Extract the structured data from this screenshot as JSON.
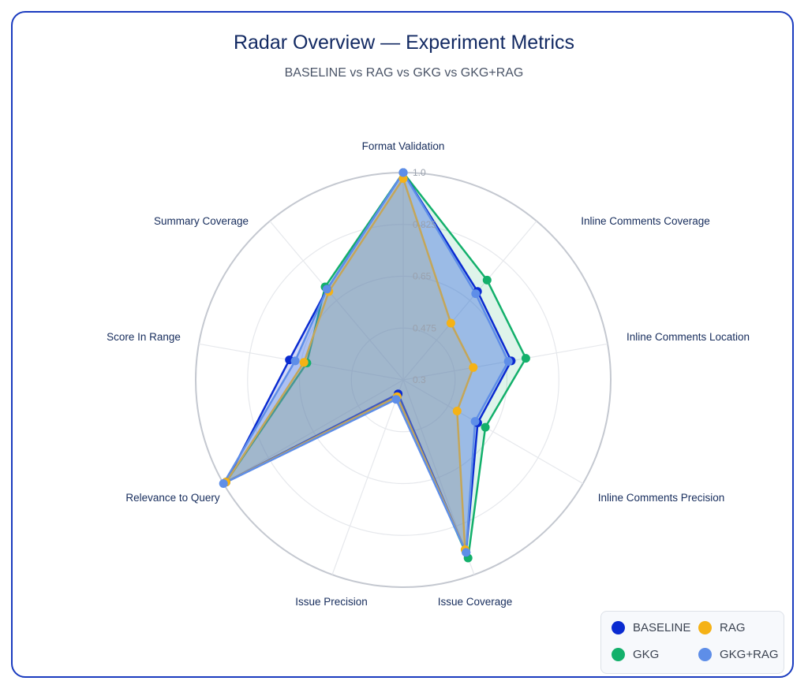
{
  "header": {
    "title": "Radar Overview — Experiment Metrics",
    "subtitle": "BASELINE vs RAG vs GKG vs GKG+RAG"
  },
  "chart_data": {
    "type": "radar",
    "title": "Radar Overview — Experiment Metrics",
    "subtitle": "BASELINE vs RAG vs GKG vs GKG+RAG",
    "categories": [
      "Format Validation",
      "Inline Comments Coverage",
      "Inline Comments Location",
      "Inline Comments Precision",
      "Issue Coverage",
      "Issue Precision",
      "Relevance to Query",
      "Score In Range",
      "Summary Coverage"
    ],
    "radial_range": [
      0.3,
      1.0
    ],
    "radial_ticks": [
      "0.3",
      "0.475",
      "0.65",
      "0.825",
      "1.0"
    ],
    "grid": true,
    "legend_position": "bottom-right",
    "series": [
      {
        "name": "BASELINE",
        "color": "#0a2bd1",
        "values": [
          1.0,
          0.69,
          0.67,
          0.59,
          0.92,
          0.35,
          0.99,
          0.69,
          0.7
        ]
      },
      {
        "name": "RAG",
        "color": "#f5b216",
        "values": [
          0.98,
          0.55,
          0.54,
          0.51,
          0.91,
          0.36,
          0.99,
          0.64,
          0.69
        ]
      },
      {
        "name": "GKG",
        "color": "#13b06b",
        "values": [
          1.0,
          0.74,
          0.72,
          0.62,
          0.94,
          0.36,
          0.99,
          0.63,
          0.71
        ]
      },
      {
        "name": "GKG+RAG",
        "color": "#5e8ee8",
        "values": [
          1.0,
          0.68,
          0.66,
          0.58,
          0.92,
          0.37,
          1.0,
          0.67,
          0.7
        ]
      }
    ]
  }
}
